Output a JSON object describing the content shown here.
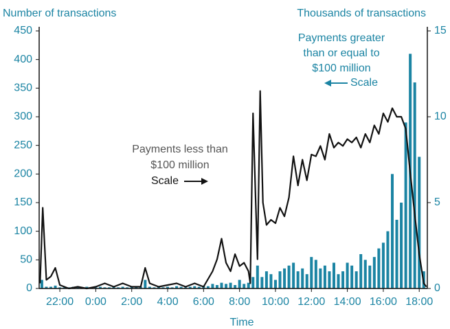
{
  "chart_data": {
    "type": "bar-line",
    "y_label": "Number of transactions",
    "y2_label": "Thousands of transactions",
    "x_label": "Time",
    "xlim": [
      20.85,
      42.45
    ],
    "xticks": [
      {
        "value": 22,
        "label": "22:00"
      },
      {
        "value": 24,
        "label": "0:00"
      },
      {
        "value": 26,
        "label": "2:00"
      },
      {
        "value": 28,
        "label": "4:00"
      },
      {
        "value": 30,
        "label": "6:00"
      },
      {
        "value": 32,
        "label": "8:00"
      },
      {
        "value": 34,
        "label": "10:00"
      },
      {
        "value": 36,
        "label": "12:00"
      },
      {
        "value": 38,
        "label": "14:00"
      },
      {
        "value": 40,
        "label": "16:00"
      },
      {
        "value": 42,
        "label": "18:00"
      }
    ],
    "ylim": [
      0,
      450
    ],
    "yticks": [
      0,
      50,
      100,
      150,
      200,
      250,
      300,
      350,
      400,
      450
    ],
    "y2lim": [
      0,
      15
    ],
    "y2ticks": [
      0,
      5,
      10,
      15
    ],
    "series": [
      {
        "type": "bar",
        "color": "#1b84a3",
        "x": [
          21,
          21.25,
          21.5,
          21.75,
          22,
          22.25,
          22.5,
          22.75,
          23,
          23.25,
          23.5,
          23.75,
          24,
          24.25,
          24.5,
          24.75,
          25,
          25.25,
          25.5,
          25.75,
          26,
          26.25,
          26.5,
          26.75,
          27,
          27.25,
          27.5,
          27.75,
          28,
          28.25,
          28.5,
          28.75,
          29,
          29.25,
          29.5,
          29.75,
          30,
          30.25,
          30.5,
          30.75,
          31,
          31.25,
          31.5,
          31.75,
          32,
          32.25,
          32.5,
          32.75,
          33,
          33.25,
          33.5,
          33.75,
          34,
          34.25,
          34.5,
          34.75,
          35,
          35.25,
          35.5,
          35.75,
          36,
          36.25,
          36.5,
          36.75,
          37,
          37.25,
          37.5,
          37.75,
          38,
          38.25,
          38.5,
          38.75,
          39,
          39.25,
          39.5,
          39.75,
          40,
          40.25,
          40.5,
          40.75,
          41,
          41.25,
          41.5,
          41.75,
          42,
          42.25
        ],
        "values": [
          15,
          3,
          3,
          5,
          2,
          2,
          2,
          3,
          2,
          2,
          3,
          2,
          2,
          3,
          2,
          2,
          3,
          2,
          3,
          2,
          3,
          2,
          3,
          15,
          3,
          2,
          3,
          2,
          3,
          2,
          4,
          3,
          2,
          3,
          4,
          3,
          5,
          4,
          8,
          6,
          10,
          8,
          10,
          6,
          15,
          8,
          10,
          20,
          40,
          20,
          30,
          25,
          15,
          30,
          35,
          40,
          45,
          30,
          35,
          25,
          55,
          50,
          35,
          40,
          30,
          45,
          25,
          30,
          45,
          40,
          30,
          60,
          50,
          40,
          55,
          70,
          80,
          100,
          200,
          120,
          150,
          290,
          410,
          360,
          230,
          30
        ]
      },
      {
        "type": "line",
        "color": "#111111",
        "axis": "y2",
        "x": [
          20.9,
          21.05,
          21.25,
          21.5,
          21.75,
          22,
          22.5,
          23,
          23.5,
          24,
          24.5,
          25,
          25.5,
          26,
          26.5,
          26.75,
          27,
          27.5,
          28,
          28.5,
          29,
          29.5,
          30,
          30.5,
          30.75,
          31,
          31.25,
          31.5,
          31.75,
          32,
          32.25,
          32.5,
          32.6,
          32.75,
          32.9,
          33,
          33.15,
          33.3,
          33.5,
          33.75,
          34,
          34.25,
          34.5,
          34.75,
          35,
          35.25,
          35.5,
          35.75,
          36,
          36.25,
          36.5,
          36.75,
          37,
          37.25,
          37.5,
          37.75,
          38,
          38.25,
          38.5,
          38.75,
          39,
          39.25,
          39.5,
          39.75,
          40,
          40.25,
          40.5,
          40.75,
          41,
          41.25,
          41.5,
          41.75,
          42,
          42.25,
          42.4
        ],
        "values": [
          0.3,
          4.7,
          0.5,
          0.7,
          1.2,
          0.2,
          0,
          0.1,
          0,
          0.1,
          0.3,
          0.1,
          0.3,
          0.1,
          0.1,
          1.2,
          0.3,
          0.1,
          0.2,
          0.3,
          0.1,
          0.3,
          0.1,
          1.0,
          1.7,
          2.9,
          1.5,
          1.0,
          2.0,
          1.3,
          1.5,
          1.0,
          0.3,
          10.2,
          5.0,
          1.7,
          11.5,
          5.0,
          3.7,
          4.0,
          3.8,
          4.7,
          4.2,
          5.3,
          7.7,
          6.0,
          7.5,
          6.3,
          7.8,
          7.7,
          8.3,
          7.5,
          9.0,
          8.2,
          8.5,
          8.3,
          8.7,
          8.5,
          8.8,
          8.2,
          9.0,
          8.5,
          9.5,
          9.0,
          10.2,
          9.7,
          10.5,
          10.0,
          10.0,
          9.3,
          6.7,
          4.3,
          2.0,
          0.3,
          0.1
        ]
      }
    ],
    "annotations": [
      {
        "lines": [
          "Payments less than",
          "$100 million",
          "Scale"
        ]
      },
      {
        "lines": [
          "Payments greater",
          "than or equal to",
          "$100 million",
          "Scale"
        ]
      }
    ]
  }
}
